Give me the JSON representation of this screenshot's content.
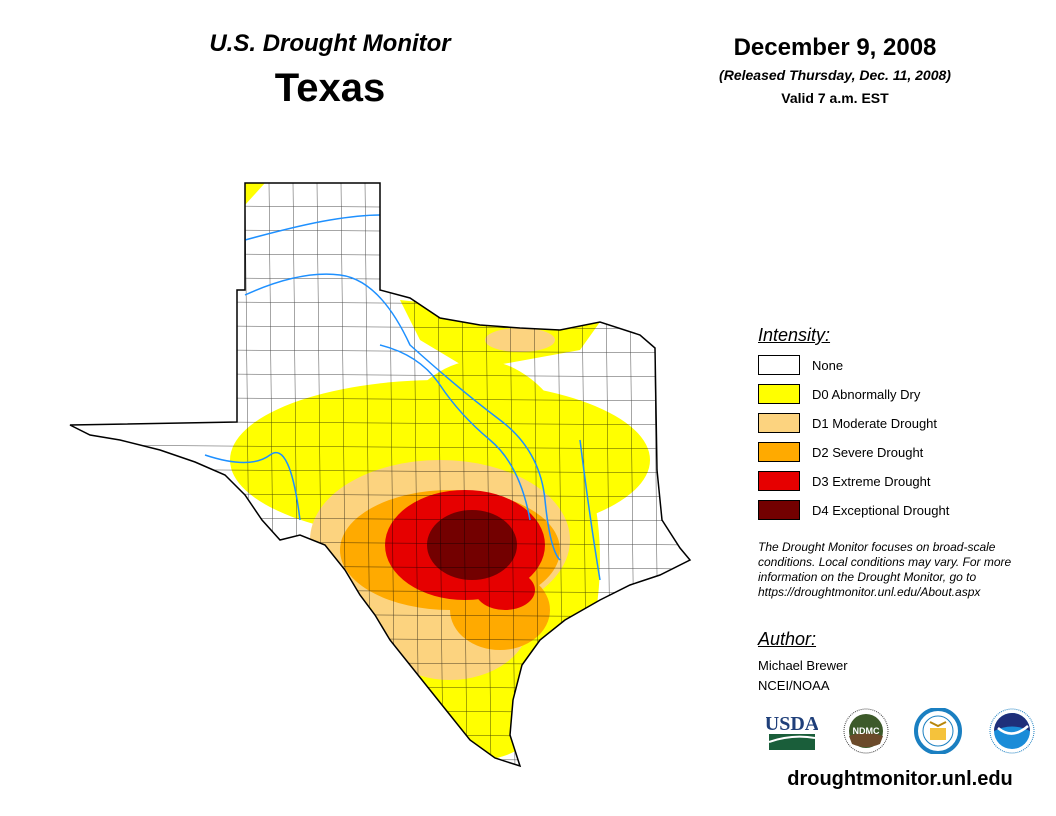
{
  "header": {
    "title": "U.S. Drought Monitor",
    "region": "Texas",
    "date": "December 9, 2008",
    "released": "(Released Thursday, Dec. 11, 2008)",
    "valid": "Valid 7 a.m. EST"
  },
  "legend": {
    "title": "Intensity:",
    "items": [
      {
        "label": "None",
        "color": "#ffffff"
      },
      {
        "label": "D0 Abnormally Dry",
        "color": "#ffff00"
      },
      {
        "label": "D1 Moderate Drought",
        "color": "#fcd37f"
      },
      {
        "label": "D2 Severe Drought",
        "color": "#ffaa00"
      },
      {
        "label": "D3 Extreme Drought",
        "color": "#e60000"
      },
      {
        "label": "D4 Exceptional Drought",
        "color": "#730000"
      }
    ]
  },
  "note": "The Drought Monitor focuses on broad-scale conditions. Local conditions may vary. For more information on the Drought Monitor, go to https://droughtmonitor.unl.edu/About.aspx",
  "author": {
    "title": "Author:",
    "name": "Michael Brewer",
    "org": "NCEI/NOAA"
  },
  "logos": [
    "USDA",
    "NDMC",
    "DOC",
    "NOAA"
  ],
  "footer_url": "droughtmonitor.unl.edu"
}
